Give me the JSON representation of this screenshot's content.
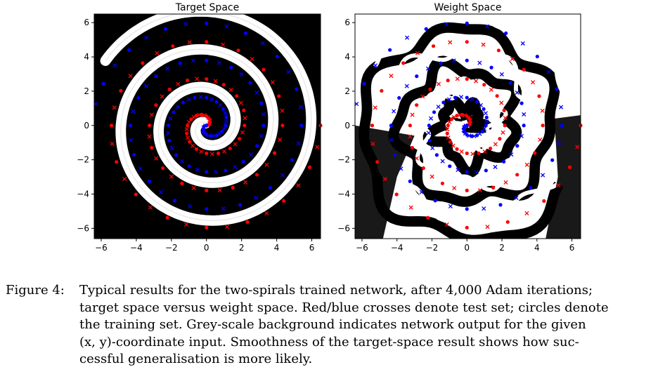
{
  "chart_data": [
    {
      "type": "scatter",
      "title": "Target Space",
      "xlabel": "",
      "ylabel": "",
      "xlim": [
        -6.4,
        6.5
      ],
      "ylim": [
        -6.6,
        6.5
      ],
      "xticks": [
        -6,
        -4,
        -2,
        0,
        2,
        4,
        6
      ],
      "yticks": [
        -6,
        -4,
        -2,
        0,
        2,
        4,
        6
      ],
      "grid": false,
      "background": "smooth grey-scale network output showing two interleaved spirals",
      "spiral": {
        "turns": 3,
        "max_radius": 6.5,
        "points_per_arm": 97
      },
      "series": [
        {
          "color": "#ff0000",
          "marker_train": "circle",
          "marker_test": "cross"
        },
        {
          "color": "#0000ff",
          "marker_train": "circle",
          "marker_test": "cross"
        }
      ]
    },
    {
      "type": "scatter",
      "title": "Weight Space",
      "xlabel": "",
      "ylabel": "",
      "xlim": [
        -6.4,
        6.5
      ],
      "ylim": [
        -6.6,
        6.5
      ],
      "xticks": [
        -6,
        -4,
        -2,
        0,
        2,
        4,
        6
      ],
      "yticks": [
        -6,
        -4,
        -2,
        0,
        2,
        4,
        6
      ],
      "grid": false,
      "background": "jagged grey-scale network output",
      "spiral": {
        "turns": 3,
        "max_radius": 6.5,
        "points_per_arm": 97
      },
      "series": [
        {
          "color": "#ff0000",
          "marker_train": "circle",
          "marker_test": "cross"
        },
        {
          "color": "#0000ff",
          "marker_train": "circle",
          "marker_test": "cross"
        }
      ]
    }
  ],
  "caption": {
    "label": "Figure 4:",
    "lines": [
      "Typical results for the two-spirals trained network, after 4,000 Adam iterations;",
      "target space versus weight space. Red/blue crosses denote test set; circles denote",
      "the training set. Grey-scale background indicates network output for the given",
      "(x, y)-coordinate input. Smoothness of the target-space result shows how suc-",
      "cessful generalisation is more likely."
    ]
  }
}
